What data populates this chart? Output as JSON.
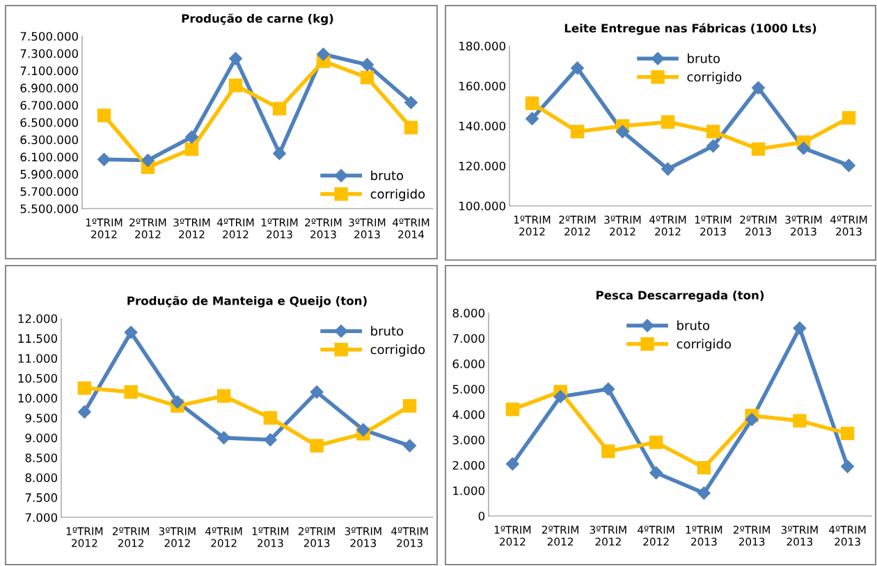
{
  "chart_data": [
    {
      "type": "line",
      "title": "Produção de carne (kg)",
      "categories": [
        "1ºTRIM\n2012",
        "2ºTRIM\n2012",
        "3ºTRIM\n2012",
        "4ºTRIM\n2012",
        "1ºTRIM\n2013",
        "2ºTRIM\n2013",
        "3ºTRIM\n2013",
        "4ºTRIM\n2014"
      ],
      "series": [
        {
          "name": "bruto",
          "color": "#4f81bd",
          "marker": "diamond",
          "values": [
            6070000,
            6060000,
            6330000,
            7240000,
            6140000,
            7290000,
            7170000,
            6730000
          ]
        },
        {
          "name": "corrigido",
          "color": "#ffc000",
          "marker": "square",
          "values": [
            6580000,
            5980000,
            6190000,
            6930000,
            6660000,
            7210000,
            7020000,
            6440000
          ]
        }
      ],
      "ylim": [
        5500000,
        7500000
      ],
      "yticks": [
        {
          "value": 5500000,
          "label": "5.500.000"
        },
        {
          "value": 5700000,
          "label": "5.700.000"
        },
        {
          "value": 5900000,
          "label": "5.900.000"
        },
        {
          "value": 6100000,
          "label": "6.100.000"
        },
        {
          "value": 6300000,
          "label": "6.300.000"
        },
        {
          "value": 6500000,
          "label": "6.500.000"
        },
        {
          "value": 6700000,
          "label": "6.700.000"
        },
        {
          "value": 6900000,
          "label": "6.900.000"
        },
        {
          "value": 7100000,
          "label": "7.100.000"
        },
        {
          "value": 7300000,
          "label": "7.300.000"
        },
        {
          "value": 7500000,
          "label": "7.500.000"
        }
      ],
      "grid": false,
      "legend": "bottom right"
    },
    {
      "type": "line",
      "title": "Leite Entregue nas Fábricas (1000 Lts)",
      "categories": [
        "1ºTRIM\n2012",
        "2ºTRIM\n2012",
        "3ºTRIM\n2012",
        "4ºTRIM\n2012",
        "1ºTRIM\n2013",
        "2ºTRIM\n2013",
        "3ºTRIM\n2013",
        "4ºTRIM\n2013"
      ],
      "series": [
        {
          "name": "bruto",
          "color": "#4f81bd",
          "marker": "diamond",
          "values": [
            143600,
            168900,
            137100,
            118400,
            129900,
            159000,
            128800,
            120200
          ]
        },
        {
          "name": "corrigido",
          "color": "#ffc000",
          "marker": "square",
          "values": [
            151300,
            137100,
            139900,
            141900,
            137100,
            128400,
            131800,
            144000
          ]
        }
      ],
      "ylim": [
        100000,
        180000
      ],
      "yticks": [
        {
          "value": 100000,
          "label": "100.000"
        },
        {
          "value": 120000,
          "label": "120.000"
        },
        {
          "value": 140000,
          "label": "140.000"
        },
        {
          "value": 160000,
          "label": "160.000"
        },
        {
          "value": 180000,
          "label": "180.000"
        }
      ],
      "grid": false,
      "legend": "top"
    },
    {
      "type": "line",
      "title": "Produção de Manteiga e Queijo (ton)",
      "categories": [
        "1ºTRIM\n2012",
        "2ºTRIM\n2012",
        "3ºTRIM\n2012",
        "4ºTRIM\n2012",
        "1ºTRIM\n2013",
        "2ºTRIM\n2013",
        "3ºTRIM\n2013",
        "4ºTRIM\n2013"
      ],
      "series": [
        {
          "name": "bruto",
          "color": "#4f81bd",
          "marker": "diamond",
          "values": [
            9650,
            11650,
            9900,
            9000,
            8950,
            10150,
            9200,
            8800
          ]
        },
        {
          "name": "corrigido",
          "color": "#ffc000",
          "marker": "square",
          "values": [
            10250,
            10150,
            9800,
            10050,
            9500,
            8800,
            9100,
            9800
          ]
        }
      ],
      "ylim": [
        7000,
        12000
      ],
      "yticks": [
        {
          "value": 7000,
          "label": "7.000"
        },
        {
          "value": 7500,
          "label": "7.500"
        },
        {
          "value": 8000,
          "label": "8.000"
        },
        {
          "value": 8500,
          "label": "8.500"
        },
        {
          "value": 9000,
          "label": "9.000"
        },
        {
          "value": 9500,
          "label": "9.500"
        },
        {
          "value": 10000,
          "label": "10.000"
        },
        {
          "value": 10500,
          "label": "10.500"
        },
        {
          "value": 11000,
          "label": "11.000"
        },
        {
          "value": 11500,
          "label": "11.500"
        },
        {
          "value": 12000,
          "label": "12.000"
        }
      ],
      "grid": false,
      "legend": "top right"
    },
    {
      "type": "line",
      "title": "Pesca Descarregada (ton)",
      "categories": [
        "1ºTRIM\n2012",
        "2ºTRIM\n2012",
        "3ºTRIM\n2012",
        "4ºTRIM\n2012",
        "1ºTRIM\n2013",
        "2ºTRIM\n2013",
        "3ºTRIM\n2013",
        "4ºTRIM\n2013"
      ],
      "series": [
        {
          "name": "bruto",
          "color": "#4f81bd",
          "marker": "diamond",
          "values": [
            2050,
            4700,
            5000,
            1700,
            900,
            3800,
            7400,
            1950
          ]
        },
        {
          "name": "corrigido",
          "color": "#ffc000",
          "marker": "square",
          "values": [
            4200,
            4900,
            2550,
            2900,
            1900,
            3950,
            3750,
            3250
          ]
        }
      ],
      "ylim": [
        0,
        8000
      ],
      "yticks": [
        0,
        {
          "value": 1000,
          "label": "1.000"
        },
        {
          "value": 2000,
          "label": "2.000"
        },
        {
          "value": 3000,
          "label": "3.000"
        },
        {
          "value": 4000,
          "label": "4.000"
        },
        {
          "value": 5000,
          "label": "5.000"
        },
        {
          "value": 6000,
          "label": "6.000"
        },
        {
          "value": 7000,
          "label": "7.000"
        },
        {
          "value": 8000,
          "label": "8.000"
        }
      ],
      "grid": false,
      "legend": "top"
    }
  ]
}
